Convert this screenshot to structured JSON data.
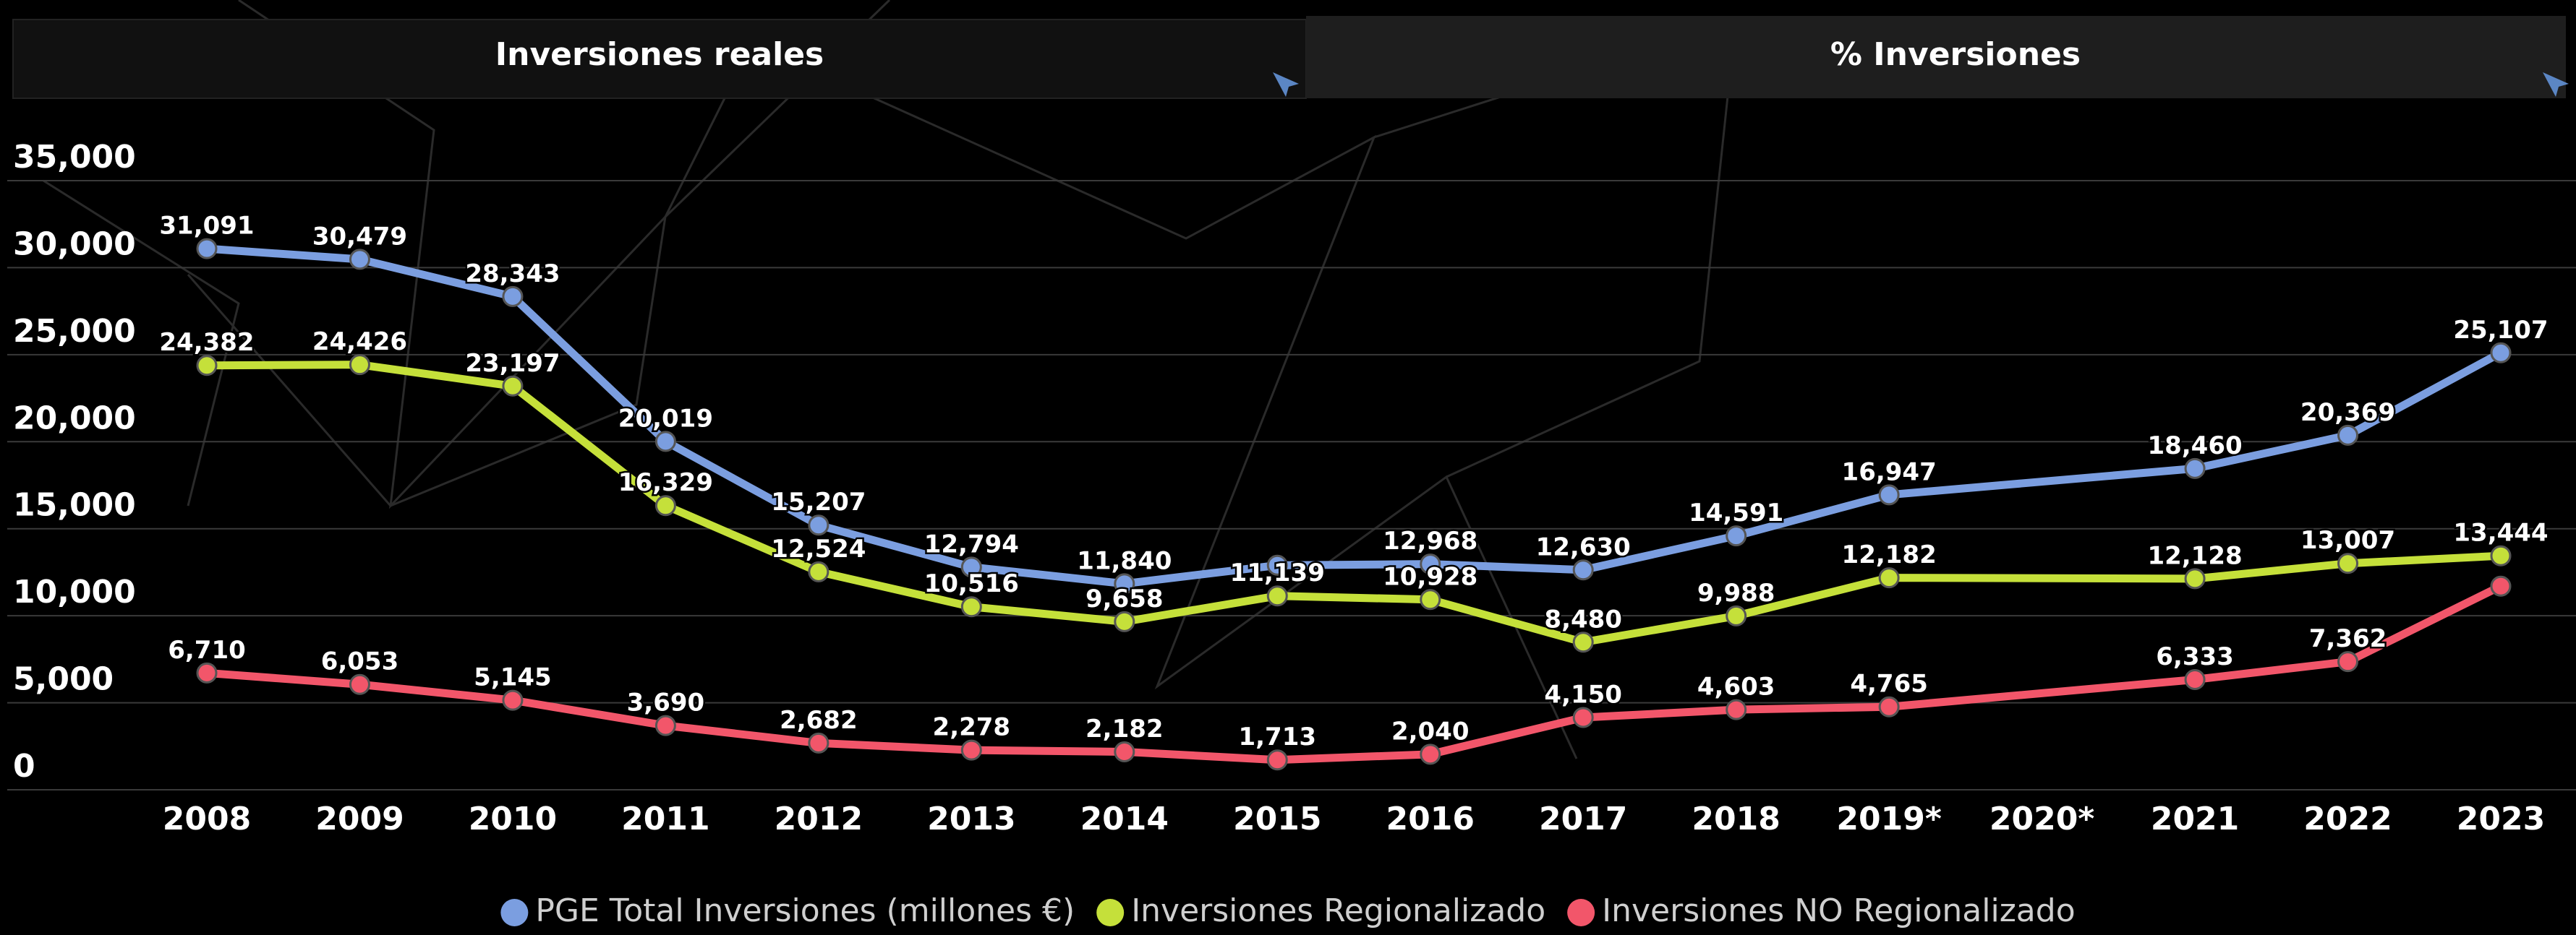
{
  "tabs": [
    "Inversiones reales",
    "% Inversiones"
  ],
  "chart_data": {
    "type": "line",
    "categories": [
      "2008",
      "2009",
      "2010",
      "2011",
      "2012",
      "2013",
      "2014",
      "2015",
      "2016",
      "2017",
      "2018",
      "2019*",
      "2020*",
      "2021",
      "2022",
      "2023"
    ],
    "series": [
      {
        "name": "PGE Total Inversiones (millones €)",
        "color": "#7b9ee0",
        "values": [
          31091,
          30479,
          28343,
          20019,
          15207,
          12794,
          11840,
          12900,
          12968,
          12630,
          14591,
          16947,
          null,
          18460,
          20369,
          25107
        ],
        "value_labels": [
          "31,091",
          "30,479",
          "28,343",
          "20,019",
          "15,207",
          "12,794",
          "11,840",
          null,
          "12,968",
          "12,630",
          "14,591",
          "16,947",
          null,
          "18,460",
          "20,369",
          "25,107"
        ]
      },
      {
        "name": "Inversiones Regionalizado",
        "color": "#c5e03a",
        "values": [
          24382,
          24426,
          23197,
          16329,
          12524,
          10516,
          9658,
          11139,
          10928,
          8480,
          9988,
          12182,
          null,
          12128,
          13007,
          13444
        ],
        "value_labels": [
          "24,382",
          "24,426",
          "23,197",
          "16,329",
          "12,524",
          "10,516",
          "9,658",
          "11,139",
          "10,928",
          "8,480",
          "9,988",
          "12,182",
          null,
          "12,128",
          "13,007",
          "13,444"
        ]
      },
      {
        "name": "Inversiones NO Regionalizado",
        "color": "#f2566a",
        "values": [
          6710,
          6053,
          5145,
          3690,
          2682,
          2278,
          2182,
          1713,
          2040,
          4150,
          4603,
          4765,
          null,
          6333,
          7362,
          11700
        ],
        "value_labels": [
          "6,710",
          "6,053",
          "5,145",
          "3,690",
          "2,682",
          "2,278",
          "2,182",
          "1,713",
          "2,040",
          "4,150",
          "4,603",
          "4,765",
          null,
          "6,333",
          "7,362",
          null
        ]
      }
    ],
    "ylim": [
      0,
      35000
    ],
    "yticks": [
      0,
      {
        "value": 5000,
        "label": "5,000"
      },
      {
        "value": 10000,
        "label": "10,000"
      },
      {
        "value": 15000,
        "label": "15,000"
      },
      {
        "value": 20000,
        "label": "20,000"
      },
      {
        "value": 25000,
        "label": "25,000"
      },
      {
        "value": 30000,
        "label": "30,000"
      },
      {
        "value": 35000,
        "label": "35,000"
      }
    ],
    "grid": true,
    "span_gaps": true,
    "legend": "bottom"
  }
}
